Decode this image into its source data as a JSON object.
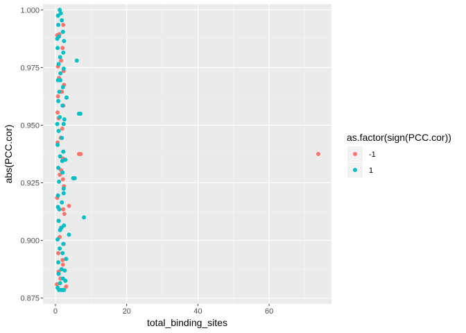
{
  "chart_data": {
    "type": "scatter",
    "xlabel": "total_binding_sites",
    "ylabel": "abs(PCC.cor)",
    "xlim": [
      -3.5,
      77.5
    ],
    "ylim": [
      0.8725,
      1.0025
    ],
    "x_ticks": [
      0,
      20,
      40,
      60
    ],
    "y_ticks": [
      0.875,
      0.9,
      0.925,
      0.95,
      0.975,
      1.0
    ],
    "y_tick_labels": [
      "0.875",
      "0.900",
      "0.925",
      "0.950",
      "0.975",
      "1.000"
    ],
    "x_tick_labels": [
      "0",
      "20",
      "40",
      "60"
    ],
    "grid": true,
    "legend": {
      "title": "as.factor(sign(PCC.cor))",
      "position": "right",
      "entries": [
        {
          "label": "-1",
          "color": "#F8766D"
        },
        {
          "label": "1",
          "color": "#00BFC4"
        }
      ]
    },
    "series": [
      {
        "name": "-1",
        "color": "#F8766D",
        "points": [
          [
            73.8,
            0.9375
          ],
          [
            6.6,
            0.9375
          ],
          [
            7.1,
            0.9375
          ],
          [
            3.8,
            0.915
          ],
          [
            3.0,
            0.88
          ],
          [
            0.4,
            0.881
          ],
          [
            0.5,
            0.989
          ],
          [
            2.0,
            0.9835
          ],
          [
            1.6,
            0.978
          ],
          [
            2.3,
            0.9735
          ],
          [
            1.0,
            0.9705
          ],
          [
            2.4,
            0.9675
          ],
          [
            0.7,
            0.9625
          ],
          [
            2.2,
            0.9585
          ],
          [
            0.9,
            0.953
          ],
          [
            1.9,
            0.9485
          ],
          [
            0.6,
            0.9425
          ],
          [
            2.1,
            0.9355
          ],
          [
            1.2,
            0.9285
          ],
          [
            2.4,
            0.9235
          ],
          [
            0.5,
            0.9185
          ],
          [
            2.2,
            0.9135
          ],
          [
            0.9,
            0.9085
          ],
          [
            1.7,
            0.9055
          ],
          [
            2.3,
            0.8985
          ],
          [
            0.8,
            0.8945
          ],
          [
            2.1,
            0.8895
          ],
          [
            1.4,
            0.8835
          ],
          [
            0.9,
            0.8865
          ],
          [
            2.0,
            0.8915
          ],
          [
            1.2,
            0.9015
          ],
          [
            2.1,
            0.9265
          ],
          [
            1.5,
            0.9445
          ],
          [
            0.6,
            0.9555
          ],
          [
            1.8,
            0.9645
          ],
          [
            1.1,
            0.9895
          ],
          [
            2.2,
            0.9935
          ],
          [
            0.7,
            0.9755
          ],
          [
            1.6,
            0.9305
          ],
          [
            2.5,
            0.9115
          ]
        ]
      },
      {
        "name": "1",
        "color": "#00BFC4",
        "points": [
          [
            1.2,
            1.0
          ],
          [
            1.5,
            0.9985
          ],
          [
            0.7,
            0.9975
          ],
          [
            1.8,
            0.9955
          ],
          [
            0.8,
            0.9935
          ],
          [
            2.1,
            0.9905
          ],
          [
            1.0,
            0.9885
          ],
          [
            2.4,
            0.9865
          ],
          [
            0.6,
            0.9835
          ],
          [
            2.2,
            0.9815
          ],
          [
            1.3,
            0.9795
          ],
          [
            6.0,
            0.978
          ],
          [
            0.9,
            0.9765
          ],
          [
            2.3,
            0.9745
          ],
          [
            1.4,
            0.9725
          ],
          [
            0.7,
            0.9695
          ],
          [
            2.1,
            0.9665
          ],
          [
            1.1,
            0.9645
          ],
          [
            3.1,
            0.962
          ],
          [
            0.8,
            0.9605
          ],
          [
            2.0,
            0.9585
          ],
          [
            6.6,
            0.955
          ],
          [
            7.0,
            0.955
          ],
          [
            1.2,
            0.9535
          ],
          [
            2.3,
            0.9505
          ],
          [
            0.9,
            0.9475
          ],
          [
            1.8,
            0.9445
          ],
          [
            0.6,
            0.9415
          ],
          [
            2.2,
            0.9385
          ],
          [
            1.3,
            0.9365
          ],
          [
            2.8,
            0.935
          ],
          [
            0.8,
            0.9315
          ],
          [
            2.0,
            0.9295
          ],
          [
            5.0,
            0.927
          ],
          [
            5.4,
            0.927
          ],
          [
            1.0,
            0.9255
          ],
          [
            2.3,
            0.9225
          ],
          [
            0.7,
            0.9195
          ],
          [
            1.8,
            0.9165
          ],
          [
            1.1,
            0.9135
          ],
          [
            8.0,
            0.91
          ],
          [
            0.9,
            0.9085
          ],
          [
            2.4,
            0.9065
          ],
          [
            1.3,
            0.9045
          ],
          [
            3.8,
            0.9025
          ],
          [
            0.6,
            0.9005
          ],
          [
            2.2,
            0.8985
          ],
          [
            1.2,
            0.8965
          ],
          [
            2.0,
            0.8945
          ],
          [
            3.0,
            0.892
          ],
          [
            0.8,
            0.8905
          ],
          [
            1.7,
            0.8875
          ],
          [
            2.6,
            0.887
          ],
          [
            0.9,
            0.8855
          ],
          [
            2.1,
            0.8835
          ],
          [
            1.3,
            0.8815
          ],
          [
            2.8,
            0.8825
          ],
          [
            0.6,
            0.8795
          ],
          [
            2.4,
            0.8785
          ],
          [
            1.0,
            0.8785
          ],
          [
            1.6,
            0.8785
          ],
          [
            2.0,
            0.8785
          ],
          [
            0.5,
            0.9875
          ],
          [
            1.9,
            0.9345
          ],
          [
            0.5,
            0.9505
          ],
          [
            1.6,
            0.9055
          ],
          [
            2.5,
            0.9525
          ],
          [
            0.7,
            0.9145
          ],
          [
            1.4,
            0.9695
          ],
          [
            2.3,
            0.9205
          ]
        ]
      }
    ]
  }
}
